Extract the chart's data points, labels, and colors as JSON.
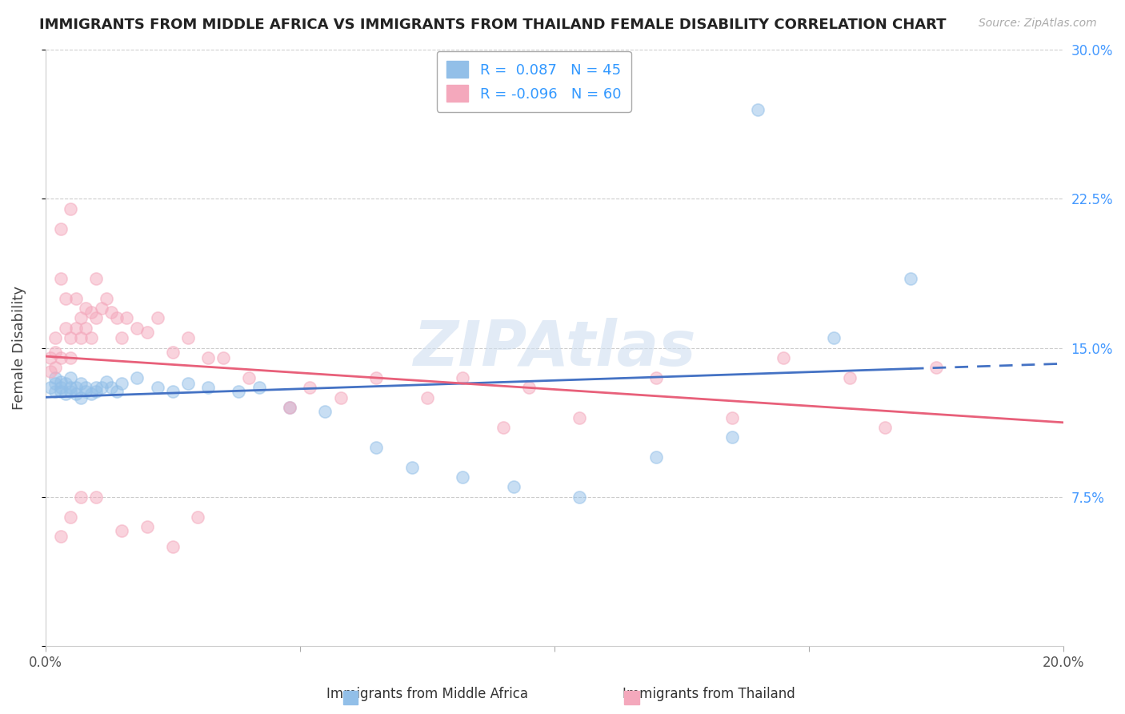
{
  "title": "IMMIGRANTS FROM MIDDLE AFRICA VS IMMIGRANTS FROM THAILAND FEMALE DISABILITY CORRELATION CHART",
  "source": "Source: ZipAtlas.com",
  "ylabel": "Female Disability",
  "xlim": [
    0.0,
    0.2
  ],
  "ylim": [
    0.0,
    0.3
  ],
  "blue_R": 0.087,
  "blue_N": 45,
  "pink_R": -0.096,
  "pink_N": 60,
  "blue_color": "#92bfe8",
  "pink_color": "#f4a8bc",
  "blue_line_color": "#4472c4",
  "pink_line_color": "#e8607a",
  "legend_label_blue": "Immigrants from Middle Africa",
  "legend_label_pink": "Immigrants from Thailand",
  "blue_x": [
    0.001,
    0.002,
    0.002,
    0.002,
    0.003,
    0.003,
    0.003,
    0.004,
    0.004,
    0.005,
    0.005,
    0.005,
    0.006,
    0.006,
    0.007,
    0.007,
    0.008,
    0.008,
    0.009,
    0.01,
    0.01,
    0.011,
    0.012,
    0.013,
    0.014,
    0.015,
    0.018,
    0.022,
    0.025,
    0.028,
    0.032,
    0.038,
    0.042,
    0.048,
    0.055,
    0.065,
    0.072,
    0.082,
    0.092,
    0.105,
    0.12,
    0.135,
    0.14,
    0.155,
    0.17
  ],
  "blue_y": [
    0.13,
    0.132,
    0.128,
    0.135,
    0.13,
    0.128,
    0.133,
    0.127,
    0.132,
    0.13,
    0.128,
    0.135,
    0.127,
    0.13,
    0.132,
    0.125,
    0.13,
    0.128,
    0.127,
    0.13,
    0.128,
    0.13,
    0.133,
    0.13,
    0.128,
    0.132,
    0.135,
    0.13,
    0.128,
    0.132,
    0.13,
    0.128,
    0.13,
    0.12,
    0.118,
    0.1,
    0.09,
    0.085,
    0.08,
    0.075,
    0.095,
    0.105,
    0.27,
    0.155,
    0.185
  ],
  "pink_x": [
    0.001,
    0.001,
    0.002,
    0.002,
    0.002,
    0.003,
    0.003,
    0.003,
    0.004,
    0.004,
    0.005,
    0.005,
    0.005,
    0.006,
    0.006,
    0.007,
    0.007,
    0.008,
    0.008,
    0.009,
    0.009,
    0.01,
    0.01,
    0.011,
    0.012,
    0.013,
    0.014,
    0.015,
    0.016,
    0.018,
    0.02,
    0.022,
    0.025,
    0.028,
    0.032,
    0.035,
    0.04,
    0.048,
    0.052,
    0.058,
    0.065,
    0.075,
    0.082,
    0.09,
    0.095,
    0.105,
    0.12,
    0.135,
    0.145,
    0.158,
    0.165,
    0.175,
    0.003,
    0.005,
    0.007,
    0.01,
    0.015,
    0.02,
    0.025,
    0.03
  ],
  "pink_y": [
    0.145,
    0.138,
    0.14,
    0.155,
    0.148,
    0.21,
    0.185,
    0.145,
    0.175,
    0.16,
    0.22,
    0.155,
    0.145,
    0.175,
    0.16,
    0.165,
    0.155,
    0.17,
    0.16,
    0.168,
    0.155,
    0.185,
    0.165,
    0.17,
    0.175,
    0.168,
    0.165,
    0.155,
    0.165,
    0.16,
    0.158,
    0.165,
    0.148,
    0.155,
    0.145,
    0.145,
    0.135,
    0.12,
    0.13,
    0.125,
    0.135,
    0.125,
    0.135,
    0.11,
    0.13,
    0.115,
    0.135,
    0.115,
    0.145,
    0.135,
    0.11,
    0.14,
    0.055,
    0.065,
    0.075,
    0.075,
    0.058,
    0.06,
    0.05,
    0.065
  ]
}
